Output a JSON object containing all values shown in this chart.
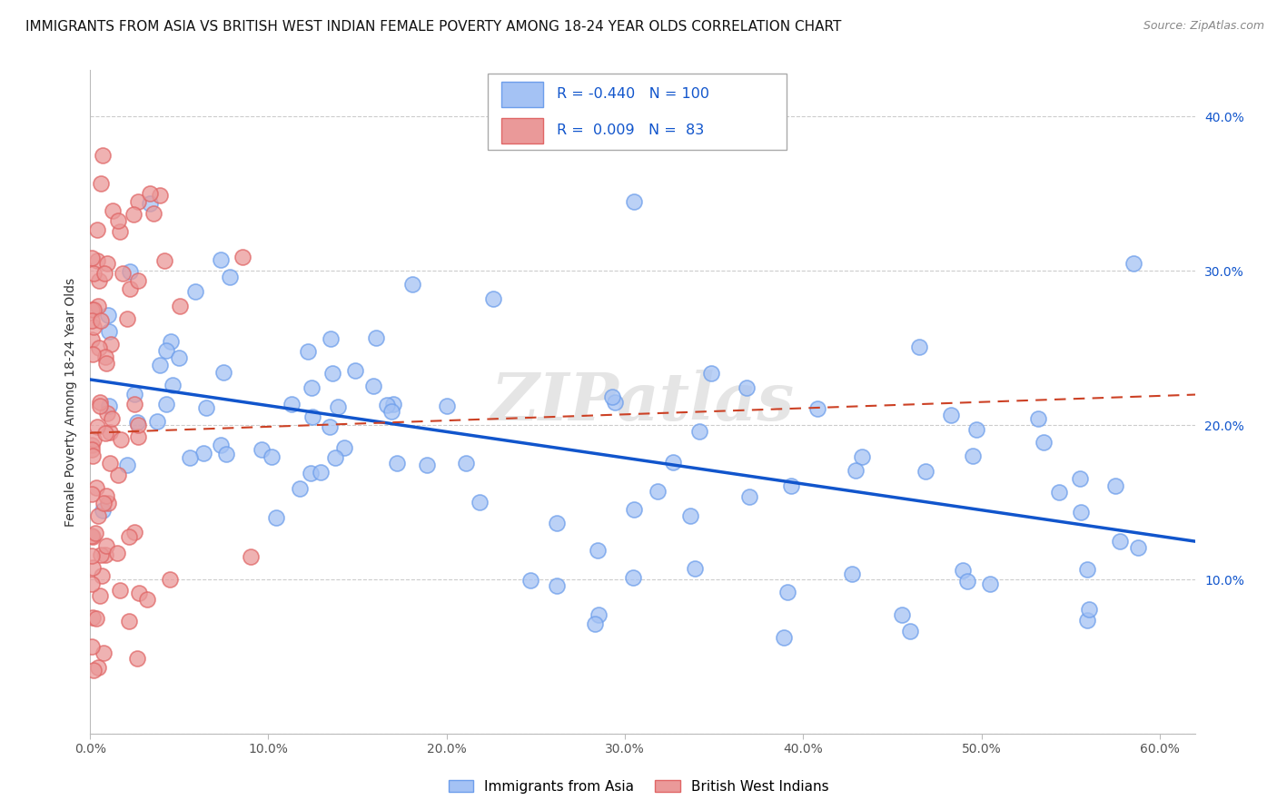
{
  "title": "IMMIGRANTS FROM ASIA VS BRITISH WEST INDIAN FEMALE POVERTY AMONG 18-24 YEAR OLDS CORRELATION CHART",
  "source": "Source: ZipAtlas.com",
  "ylabel": "Female Poverty Among 18-24 Year Olds",
  "xlim": [
    0.0,
    0.62
  ],
  "ylim": [
    0.0,
    0.43
  ],
  "xticks": [
    0.0,
    0.1,
    0.2,
    0.3,
    0.4,
    0.5,
    0.6
  ],
  "yticks": [
    0.0,
    0.1,
    0.2,
    0.3,
    0.4
  ],
  "xtick_labels": [
    "0.0%",
    "10.0%",
    "20.0%",
    "30.0%",
    "40.0%",
    "50.0%",
    "60.0%"
  ],
  "ytick_labels": [
    "",
    "10.0%",
    "20.0%",
    "30.0%",
    "40.0%"
  ],
  "legend_blue_label": "Immigrants from Asia",
  "legend_pink_label": "British West Indians",
  "blue_R": -0.44,
  "blue_N": 100,
  "pink_R": 0.009,
  "pink_N": 83,
  "blue_color": "#a4c2f4",
  "pink_color": "#ea9999",
  "blue_edge_color": "#6d9eeb",
  "pink_edge_color": "#e06666",
  "blue_line_color": "#1155cc",
  "pink_line_color": "#cc4125",
  "background_color": "#ffffff",
  "grid_color": "#cccccc",
  "watermark": "ZIPatlas",
  "title_fontsize": 11,
  "axis_label_fontsize": 10,
  "tick_fontsize": 10
}
